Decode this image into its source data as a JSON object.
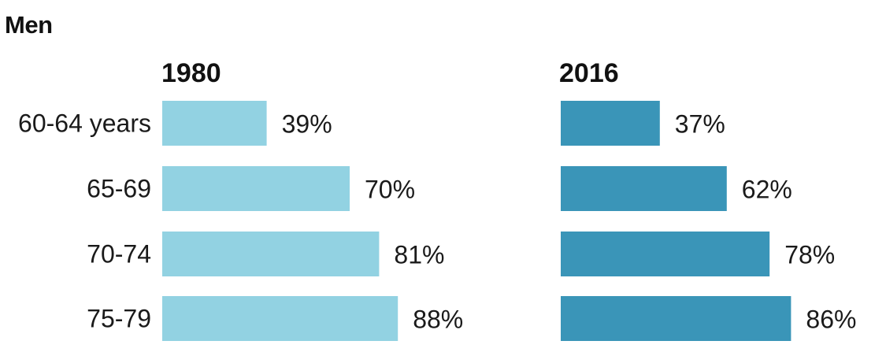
{
  "title": "Men",
  "colors": {
    "1980": "#92d2e2",
    "2016": "#3a95b8"
  },
  "chart_data": {
    "type": "bar",
    "orientation": "horizontal",
    "title": "Men",
    "categories": [
      "60-64 years",
      "65-69",
      "70-74",
      "75-79"
    ],
    "series": [
      {
        "name": "1980",
        "values": [
          39,
          70,
          81,
          88
        ],
        "labels": [
          "39%",
          "70%",
          "81%",
          "88%"
        ]
      },
      {
        "name": "2016",
        "values": [
          37,
          62,
          78,
          86
        ],
        "labels": [
          "37%",
          "62%",
          "78%",
          "86%"
        ]
      }
    ],
    "xlim": [
      0,
      100
    ],
    "grid": false
  }
}
